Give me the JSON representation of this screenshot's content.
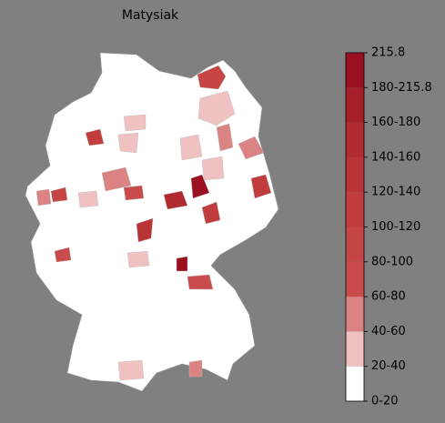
{
  "title": "Matysiak",
  "colorbar": {
    "labels": [
      "0-20",
      "20-40",
      "40-60",
      "60-80",
      "80-100",
      "100-120",
      "120-140",
      "140-160",
      "160-180",
      "180-215.8",
      "215.8"
    ],
    "colors": [
      "#ffffff",
      "#efc1c1",
      "#db8383",
      "#c94b4b",
      "#c54444",
      "#c03c3d",
      "#b93437",
      "#b02a30",
      "#a61f28",
      "#9a1020"
    ]
  }
}
